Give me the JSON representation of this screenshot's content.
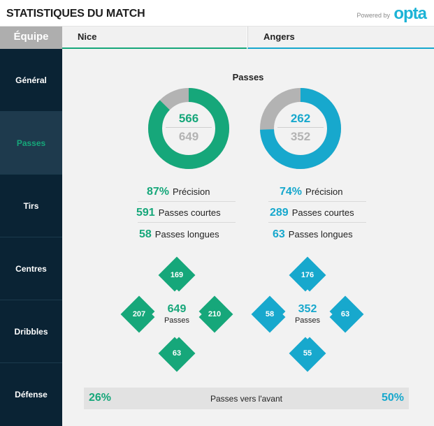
{
  "header": {
    "title": "STATISTIQUES DU MATCH",
    "powered_by": "Powered by",
    "brand": "opta"
  },
  "teams": {
    "equipe_label": "Équipe",
    "home": "Nice",
    "away": "Angers"
  },
  "colors": {
    "home": "#16a77a",
    "away": "#17a8cd",
    "sidebar_bg": "#0a2334",
    "neutral": "#b3b3b3"
  },
  "sidebar": {
    "items": [
      {
        "label": "Général"
      },
      {
        "label": "Passes"
      },
      {
        "label": "Tirs"
      },
      {
        "label": "Centres"
      },
      {
        "label": "Dribbles"
      },
      {
        "label": "Défense"
      }
    ],
    "active": "Passes"
  },
  "passes": {
    "title": "Passes",
    "home": {
      "completed": "566",
      "total": "649",
      "completed_fraction": 0.872,
      "precision_value": "87%",
      "precision_label": "Précision",
      "short_value": "591",
      "short_label": "Passes courtes",
      "long_value": "58",
      "long_label": "Passes longues",
      "directions": {
        "top": "169",
        "left": "207",
        "right": "210",
        "bottom": "63"
      },
      "center_total": "649",
      "center_label": "Passes"
    },
    "away": {
      "completed": "262",
      "total": "352",
      "completed_fraction": 0.744,
      "precision_value": "74%",
      "precision_label": "Précision",
      "short_value": "289",
      "short_label": "Passes courtes",
      "long_value": "63",
      "long_label": "Passes longues",
      "directions": {
        "top": "176",
        "left": "58",
        "right": "63",
        "bottom": "55"
      },
      "center_total": "352",
      "center_label": "Passes"
    },
    "forward": {
      "home": "26%",
      "label": "Passes vers l'avant",
      "away": "50%"
    }
  }
}
